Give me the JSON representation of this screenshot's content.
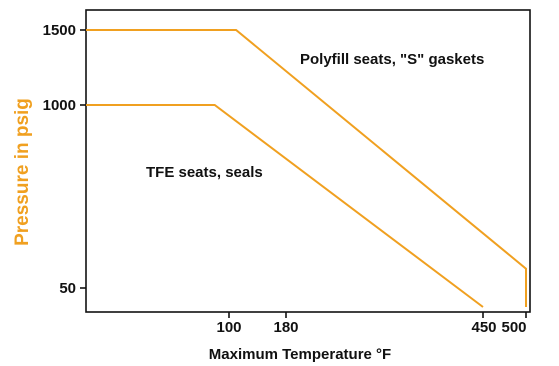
{
  "chart_data": {
    "type": "line",
    "title": "",
    "xlabel": "Maximum Temperature °F",
    "ylabel": "Pressure in psig",
    "x_ticks": [
      "100",
      "180",
      "450",
      "500"
    ],
    "y_ticks": [
      "1500",
      "1000",
      "50"
    ],
    "grid": false,
    "legend": "none",
    "series": [
      {
        "name": "Polyfill seats, \"S\" gaskets",
        "points": [
          {
            "x": 0,
            "y": 1500
          },
          {
            "x": 110,
            "y": 1500
          },
          {
            "x": 500,
            "y": 150
          },
          {
            "x": 500,
            "y": 0
          }
        ]
      },
      {
        "name": "TFE seats, seals",
        "points": [
          {
            "x": 0,
            "y": 1000
          },
          {
            "x": 90,
            "y": 1000
          },
          {
            "x": 450,
            "y": 0
          }
        ]
      }
    ],
    "colors": {
      "line": "#F0A020",
      "ylabel": "#F0A020",
      "axis": "#111111",
      "text": "#111111"
    }
  }
}
